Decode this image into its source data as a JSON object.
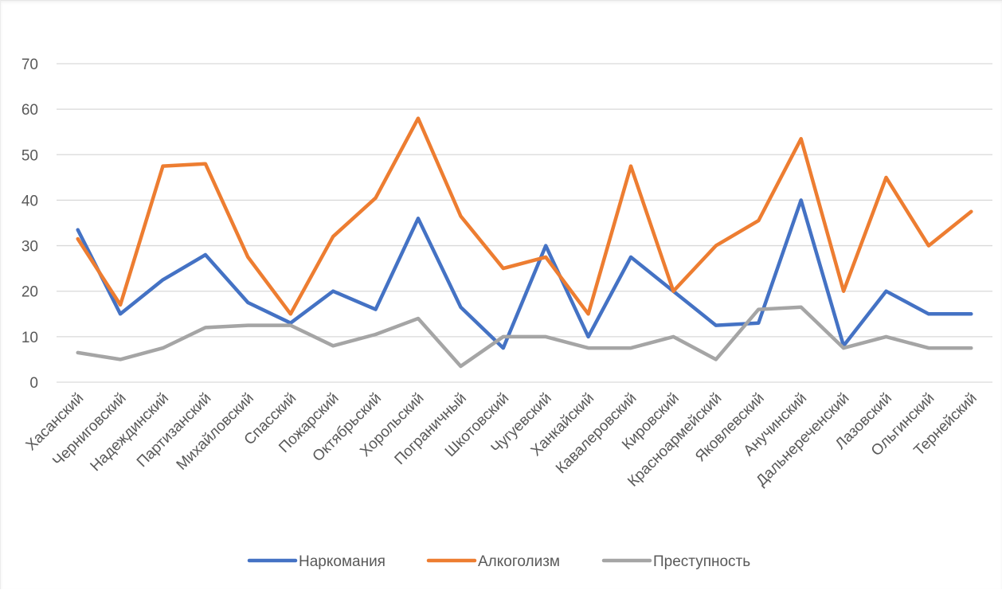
{
  "chart_data": {
    "type": "line",
    "title": "",
    "xlabel": "",
    "ylabel": "",
    "ylim": [
      0,
      70
    ],
    "yticks": [
      0,
      10,
      20,
      30,
      40,
      50,
      60,
      70
    ],
    "grid": true,
    "legend_position": "bottom",
    "categories": [
      "Хасанский",
      "Черниговский",
      "Надеждинский",
      "Партизанский",
      "Михайловский",
      "Спасский",
      "Пожарский",
      "Октябрьский",
      "Хорольский",
      "Пограничный",
      "Шкотовский",
      "Чугуевский",
      "Ханкайский",
      "Кавалеровский",
      "Кировский",
      "Красноармейский",
      "Яковлевский",
      "Анучинский",
      "Дальнереченский",
      "Лазовский",
      "Ольгинский",
      "Тернейский"
    ],
    "series": [
      {
        "name": "Наркомания",
        "color": "#4472c4",
        "values": [
          33.5,
          15,
          22.5,
          28,
          17.5,
          13,
          20,
          16,
          36,
          16.5,
          7.5,
          30,
          10,
          27.5,
          20,
          12.5,
          13,
          40,
          8,
          20,
          15,
          15
        ]
      },
      {
        "name": "Алкоголизм",
        "color": "#ed7d31",
        "values": [
          31.5,
          17,
          47.5,
          48,
          27.5,
          15,
          32,
          40.5,
          58,
          36.5,
          25,
          27.5,
          15,
          47.5,
          20,
          30,
          35.5,
          53.5,
          20,
          45,
          30,
          37.5
        ]
      },
      {
        "name": "Преступность",
        "color": "#a5a5a5",
        "values": [
          6.5,
          5,
          7.5,
          12,
          12.5,
          12.5,
          8,
          10.5,
          14,
          3.5,
          10,
          10,
          7.5,
          7.5,
          10,
          5,
          16,
          16.5,
          7.5,
          10,
          7.5,
          7.5
        ]
      }
    ]
  }
}
